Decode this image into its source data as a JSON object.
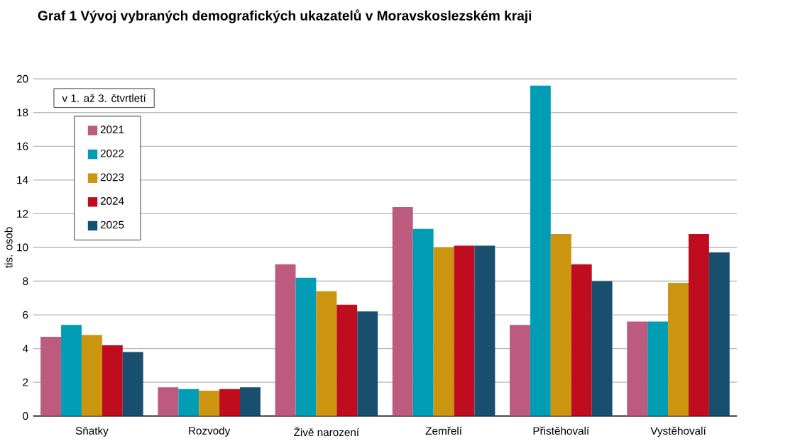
{
  "chart_data": {
    "type": "bar",
    "title": "Graf 1 Vývoj vybraných demografických ukazatelů v Moravskoslezském  kraji",
    "ylabel": "tis. osob",
    "legend_title": "v 1. až 3. čtvrtletí",
    "categories": [
      "Sňatky",
      "Rozvody",
      "Živě narození",
      "Zemřelí",
      "Přistěhovalí",
      "Vystěhovalí"
    ],
    "series": [
      {
        "name": "2021",
        "color": "#bc5b7e",
        "values": [
          4.7,
          1.7,
          9.0,
          12.4,
          5.4,
          5.6
        ]
      },
      {
        "name": "2022",
        "color": "#009db5",
        "values": [
          5.4,
          1.6,
          8.2,
          11.1,
          19.6,
          5.6
        ]
      },
      {
        "name": "2023",
        "color": "#cc9510",
        "values": [
          4.8,
          1.5,
          7.4,
          10.0,
          10.8,
          7.9
        ]
      },
      {
        "name": "2024",
        "color": "#bf0d1f",
        "values": [
          4.2,
          1.6,
          6.6,
          10.1,
          9.0,
          10.8
        ]
      },
      {
        "name": "2025",
        "color": "#184f6f",
        "values": [
          3.8,
          1.7,
          6.2,
          10.1,
          8.0,
          9.7
        ]
      }
    ],
    "ylim": [
      0,
      20
    ],
    "yticks": [
      0,
      2,
      4,
      6,
      8,
      10,
      12,
      14,
      16,
      18,
      20
    ],
    "grid": "y",
    "legend": "top left"
  }
}
